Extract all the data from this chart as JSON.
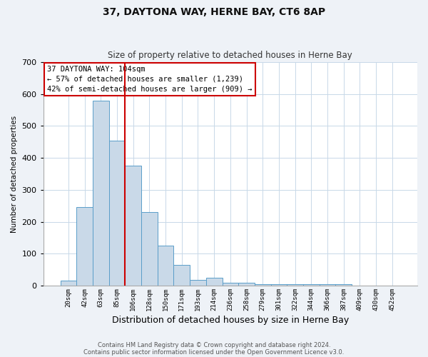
{
  "title1": "37, DAYTONA WAY, HERNE BAY, CT6 8AP",
  "title2": "Size of property relative to detached houses in Herne Bay",
  "xlabel": "Distribution of detached houses by size in Herne Bay",
  "ylabel": "Number of detached properties",
  "categories": [
    "20sqm",
    "42sqm",
    "63sqm",
    "85sqm",
    "106sqm",
    "128sqm",
    "150sqm",
    "171sqm",
    "193sqm",
    "214sqm",
    "236sqm",
    "258sqm",
    "279sqm",
    "301sqm",
    "322sqm",
    "344sqm",
    "366sqm",
    "387sqm",
    "409sqm",
    "430sqm",
    "452sqm"
  ],
  "values": [
    15,
    245,
    580,
    455,
    375,
    230,
    125,
    65,
    18,
    25,
    10,
    8,
    5,
    5,
    5,
    5,
    5,
    5,
    0,
    0,
    0
  ],
  "bar_color": "#c9d9e8",
  "bar_edge_color": "#5a9ec9",
  "red_line_x": 3.5,
  "red_line_color": "#cc0000",
  "annotation_text": "37 DAYTONA WAY: 104sqm\n← 57% of detached houses are smaller (1,239)\n42% of semi-detached houses are larger (909) →",
  "annotation_box_color": "#ffffff",
  "annotation_box_edge_color": "#cc0000",
  "ylim": [
    0,
    700
  ],
  "yticks": [
    0,
    100,
    200,
    300,
    400,
    500,
    600,
    700
  ],
  "footer1": "Contains HM Land Registry data © Crown copyright and database right 2024.",
  "footer2": "Contains public sector information licensed under the Open Government Licence v3.0.",
  "background_color": "#eef2f7",
  "plot_background_color": "#ffffff",
  "grid_color": "#c8d8e8",
  "title1_fontsize": 10,
  "title2_fontsize": 8.5,
  "ylabel_fontsize": 7.5,
  "xlabel_fontsize": 9,
  "ytick_fontsize": 8,
  "xtick_fontsize": 6.5,
  "annotation_fontsize": 7.5,
  "footer_fontsize": 6
}
